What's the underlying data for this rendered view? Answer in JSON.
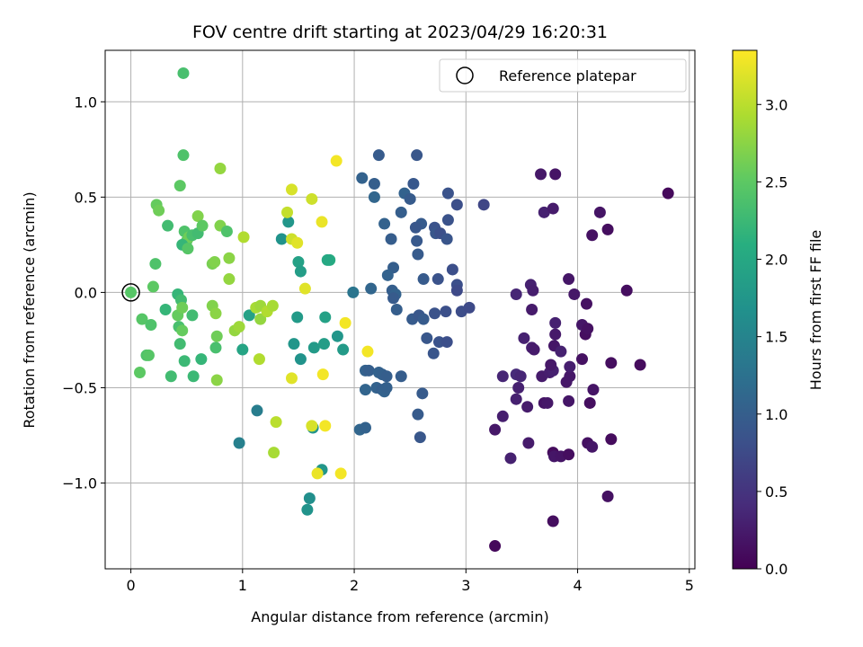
{
  "chart_data": {
    "type": "scatter",
    "title": "FOV centre drift starting at 2023/04/29 16:20:31",
    "xlabel": "Angular distance from reference (arcmin)",
    "ylabel": "Rotation from reference (arcmin)",
    "xlim": [
      -0.23,
      5.05
    ],
    "ylim": [
      -1.45,
      1.27
    ],
    "xticks": [
      0,
      1,
      2,
      3,
      4,
      5
    ],
    "xtick_labels": [
      "0",
      "1",
      "2",
      "3",
      "4",
      "5"
    ],
    "yticks": [
      -1.0,
      -0.5,
      0.0,
      0.5,
      1.0
    ],
    "ytick_labels": [
      "−1.0",
      "−0.5",
      "0.0",
      "0.5",
      "1.0"
    ],
    "grid": true,
    "colormap": "viridis",
    "colorbar": {
      "label": "Hours from first FF file",
      "range": [
        0.0,
        3.35
      ],
      "ticks": [
        0.0,
        0.5,
        1.0,
        1.5,
        2.0,
        2.5,
        3.0
      ],
      "tick_labels": [
        "0.0",
        "0.5",
        "1.0",
        "1.5",
        "2.0",
        "2.5",
        "3.0"
      ]
    },
    "legend": {
      "placement": "top-right",
      "label": "Reference platepar"
    },
    "reference_point": {
      "x": 0.0,
      "y": 0.0
    },
    "points": [
      {
        "x": 3.26,
        "y": -1.33,
        "t": 0.08
      },
      {
        "x": 3.78,
        "y": -1.2,
        "t": 0.12
      },
      {
        "x": 4.27,
        "y": -1.07,
        "t": 0.15
      },
      {
        "x": 3.4,
        "y": -0.87,
        "t": 0.3
      },
      {
        "x": 3.78,
        "y": -0.84,
        "t": 0.1
      },
      {
        "x": 3.79,
        "y": -0.86,
        "t": 0.2
      },
      {
        "x": 3.85,
        "y": -0.86,
        "t": 0.18
      },
      {
        "x": 3.92,
        "y": -0.85,
        "t": 0.12
      },
      {
        "x": 4.09,
        "y": -0.79,
        "t": 0.15
      },
      {
        "x": 4.13,
        "y": -0.81,
        "t": 0.2
      },
      {
        "x": 4.3,
        "y": -0.77,
        "t": 0.1
      },
      {
        "x": 3.56,
        "y": -0.79,
        "t": 0.25
      },
      {
        "x": 3.26,
        "y": -0.72,
        "t": 0.22
      },
      {
        "x": 3.33,
        "y": -0.65,
        "t": 0.28
      },
      {
        "x": 3.7,
        "y": -0.58,
        "t": 0.18
      },
      {
        "x": 3.73,
        "y": -0.58,
        "t": 0.22
      },
      {
        "x": 3.45,
        "y": -0.56,
        "t": 0.3
      },
      {
        "x": 3.55,
        "y": -0.6,
        "t": 0.25
      },
      {
        "x": 3.92,
        "y": -0.57,
        "t": 0.2
      },
      {
        "x": 4.11,
        "y": -0.58,
        "t": 0.12
      },
      {
        "x": 3.47,
        "y": -0.5,
        "t": 0.3
      },
      {
        "x": 4.14,
        "y": -0.51,
        "t": 0.18
      },
      {
        "x": 3.9,
        "y": -0.47,
        "t": 0.22
      },
      {
        "x": 3.33,
        "y": -0.44,
        "t": 0.35
      },
      {
        "x": 3.45,
        "y": -0.43,
        "t": 0.4
      },
      {
        "x": 3.49,
        "y": -0.44,
        "t": 0.35
      },
      {
        "x": 3.68,
        "y": -0.44,
        "t": 0.25
      },
      {
        "x": 3.75,
        "y": -0.42,
        "t": 0.28
      },
      {
        "x": 3.78,
        "y": -0.41,
        "t": 0.3
      },
      {
        "x": 3.93,
        "y": -0.44,
        "t": 0.22
      },
      {
        "x": 3.76,
        "y": -0.38,
        "t": 0.22
      },
      {
        "x": 3.93,
        "y": -0.39,
        "t": 0.28
      },
      {
        "x": 4.04,
        "y": -0.35,
        "t": 0.15
      },
      {
        "x": 4.3,
        "y": -0.37,
        "t": 0.12
      },
      {
        "x": 4.56,
        "y": -0.38,
        "t": 0.1
      },
      {
        "x": 3.52,
        "y": -0.24,
        "t": 0.3
      },
      {
        "x": 3.59,
        "y": -0.29,
        "t": 0.28
      },
      {
        "x": 3.61,
        "y": -0.3,
        "t": 0.25
      },
      {
        "x": 3.79,
        "y": -0.28,
        "t": 0.2
      },
      {
        "x": 3.8,
        "y": -0.22,
        "t": 0.24
      },
      {
        "x": 3.85,
        "y": -0.31,
        "t": 0.3
      },
      {
        "x": 4.07,
        "y": -0.22,
        "t": 0.12
      },
      {
        "x": 4.04,
        "y": -0.17,
        "t": 0.2
      },
      {
        "x": 4.09,
        "y": -0.19,
        "t": 0.15
      },
      {
        "x": 3.59,
        "y": -0.09,
        "t": 0.25
      },
      {
        "x": 3.8,
        "y": -0.16,
        "t": 0.3
      },
      {
        "x": 3.45,
        "y": -0.01,
        "t": 0.35
      },
      {
        "x": 3.58,
        "y": 0.04,
        "t": 0.3
      },
      {
        "x": 3.6,
        "y": 0.01,
        "t": 0.28
      },
      {
        "x": 3.97,
        "y": -0.01,
        "t": 0.22
      },
      {
        "x": 4.08,
        "y": -0.06,
        "t": 0.15
      },
      {
        "x": 4.44,
        "y": 0.01,
        "t": 0.12
      },
      {
        "x": 3.92,
        "y": 0.07,
        "t": 0.2
      },
      {
        "x": 4.13,
        "y": 0.3,
        "t": 0.15
      },
      {
        "x": 4.27,
        "y": 0.33,
        "t": 0.12
      },
      {
        "x": 4.2,
        "y": 0.42,
        "t": 0.18
      },
      {
        "x": 3.7,
        "y": 0.42,
        "t": 0.3
      },
      {
        "x": 3.78,
        "y": 0.44,
        "t": 0.25
      },
      {
        "x": 3.67,
        "y": 0.62,
        "t": 0.22
      },
      {
        "x": 3.8,
        "y": 0.62,
        "t": 0.18
      },
      {
        "x": 4.81,
        "y": 0.52,
        "t": 0.08
      },
      {
        "x": 2.22,
        "y": 0.72,
        "t": 0.95
      },
      {
        "x": 2.56,
        "y": 0.72,
        "t": 0.9
      },
      {
        "x": 2.07,
        "y": 0.6,
        "t": 1.05
      },
      {
        "x": 2.18,
        "y": 0.57,
        "t": 1.0
      },
      {
        "x": 2.53,
        "y": 0.57,
        "t": 0.92
      },
      {
        "x": 2.18,
        "y": 0.5,
        "t": 1.1
      },
      {
        "x": 2.45,
        "y": 0.52,
        "t": 1.05
      },
      {
        "x": 2.5,
        "y": 0.49,
        "t": 0.95
      },
      {
        "x": 2.84,
        "y": 0.52,
        "t": 0.85
      },
      {
        "x": 2.92,
        "y": 0.46,
        "t": 0.8
      },
      {
        "x": 3.16,
        "y": 0.46,
        "t": 0.7
      },
      {
        "x": 2.27,
        "y": 0.36,
        "t": 1.05
      },
      {
        "x": 2.42,
        "y": 0.42,
        "t": 1.0
      },
      {
        "x": 2.6,
        "y": 0.36,
        "t": 0.95
      },
      {
        "x": 2.55,
        "y": 0.34,
        "t": 0.9
      },
      {
        "x": 2.72,
        "y": 0.34,
        "t": 0.85
      },
      {
        "x": 2.84,
        "y": 0.38,
        "t": 0.85
      },
      {
        "x": 2.73,
        "y": 0.31,
        "t": 0.9
      },
      {
        "x": 2.77,
        "y": 0.31,
        "t": 0.82
      },
      {
        "x": 2.33,
        "y": 0.28,
        "t": 0.98
      },
      {
        "x": 2.56,
        "y": 0.27,
        "t": 0.93
      },
      {
        "x": 2.83,
        "y": 0.28,
        "t": 0.88
      },
      {
        "x": 2.57,
        "y": 0.2,
        "t": 0.95
      },
      {
        "x": 2.35,
        "y": 0.13,
        "t": 1.0
      },
      {
        "x": 2.3,
        "y": 0.09,
        "t": 1.05
      },
      {
        "x": 2.62,
        "y": 0.07,
        "t": 0.95
      },
      {
        "x": 2.75,
        "y": 0.07,
        "t": 0.85
      },
      {
        "x": 2.88,
        "y": 0.12,
        "t": 0.8
      },
      {
        "x": 2.15,
        "y": 0.02,
        "t": 1.1
      },
      {
        "x": 2.34,
        "y": 0.01,
        "t": 1.0
      },
      {
        "x": 2.37,
        "y": -0.01,
        "t": 1.05
      },
      {
        "x": 2.35,
        "y": -0.03,
        "t": 0.95
      },
      {
        "x": 2.92,
        "y": 0.04,
        "t": 0.8
      },
      {
        "x": 2.92,
        "y": 0.01,
        "t": 0.75
      },
      {
        "x": 2.38,
        "y": -0.09,
        "t": 1.0
      },
      {
        "x": 2.52,
        "y": -0.14,
        "t": 0.95
      },
      {
        "x": 2.58,
        "y": -0.12,
        "t": 0.9
      },
      {
        "x": 2.62,
        "y": -0.14,
        "t": 0.95
      },
      {
        "x": 2.72,
        "y": -0.11,
        "t": 0.85
      },
      {
        "x": 2.65,
        "y": -0.24,
        "t": 0.9
      },
      {
        "x": 2.76,
        "y": -0.26,
        "t": 0.85
      },
      {
        "x": 2.83,
        "y": -0.26,
        "t": 0.8
      },
      {
        "x": 2.71,
        "y": -0.32,
        "t": 0.88
      },
      {
        "x": 2.82,
        "y": -0.1,
        "t": 0.82
      },
      {
        "x": 2.96,
        "y": -0.1,
        "t": 0.78
      },
      {
        "x": 3.03,
        "y": -0.08,
        "t": 0.75
      },
      {
        "x": 2.1,
        "y": -0.41,
        "t": 1.05
      },
      {
        "x": 2.13,
        "y": -0.41,
        "t": 1.0
      },
      {
        "x": 2.22,
        "y": -0.42,
        "t": 1.05
      },
      {
        "x": 2.25,
        "y": -0.43,
        "t": 1.02
      },
      {
        "x": 2.29,
        "y": -0.44,
        "t": 1.0
      },
      {
        "x": 2.42,
        "y": -0.44,
        "t": 0.98
      },
      {
        "x": 2.1,
        "y": -0.51,
        "t": 1.08
      },
      {
        "x": 2.2,
        "y": -0.5,
        "t": 1.05
      },
      {
        "x": 2.25,
        "y": -0.51,
        "t": 1.0
      },
      {
        "x": 2.27,
        "y": -0.52,
        "t": 1.05
      },
      {
        "x": 2.29,
        "y": -0.5,
        "t": 1.02
      },
      {
        "x": 2.61,
        "y": -0.53,
        "t": 0.95
      },
      {
        "x": 2.57,
        "y": -0.64,
        "t": 0.95
      },
      {
        "x": 2.05,
        "y": -0.72,
        "t": 1.1
      },
      {
        "x": 2.1,
        "y": -0.71,
        "t": 1.05
      },
      {
        "x": 2.59,
        "y": -0.76,
        "t": 0.9
      },
      {
        "x": 1.99,
        "y": 0.0,
        "t": 1.3
      },
      {
        "x": 0.97,
        "y": -0.79,
        "t": 1.45
      },
      {
        "x": 1.13,
        "y": -0.62,
        "t": 1.4
      },
      {
        "x": 1.58,
        "y": -1.14,
        "t": 1.7
      },
      {
        "x": 1.6,
        "y": -1.08,
        "t": 1.65
      },
      {
        "x": 1.63,
        "y": -0.71,
        "t": 1.7
      },
      {
        "x": 1.71,
        "y": -0.93,
        "t": 1.75
      },
      {
        "x": 1.78,
        "y": 0.17,
        "t": 2.05
      },
      {
        "x": 1.76,
        "y": 0.17,
        "t": 2.0
      },
      {
        "x": 1.5,
        "y": 0.16,
        "t": 1.9
      },
      {
        "x": 1.52,
        "y": 0.11,
        "t": 1.85
      },
      {
        "x": 1.35,
        "y": 0.28,
        "t": 1.7
      },
      {
        "x": 1.41,
        "y": 0.37,
        "t": 1.75
      },
      {
        "x": 1.49,
        "y": -0.13,
        "t": 1.8
      },
      {
        "x": 1.46,
        "y": -0.27,
        "t": 1.75
      },
      {
        "x": 1.52,
        "y": -0.35,
        "t": 1.7
      },
      {
        "x": 1.64,
        "y": -0.29,
        "t": 1.8
      },
      {
        "x": 1.73,
        "y": -0.27,
        "t": 1.85
      },
      {
        "x": 1.74,
        "y": -0.13,
        "t": 1.9
      },
      {
        "x": 1.85,
        "y": -0.23,
        "t": 1.75
      },
      {
        "x": 1.9,
        "y": -0.3,
        "t": 1.8
      },
      {
        "x": 1.0,
        "y": -0.3,
        "t": 1.95
      },
      {
        "x": 1.06,
        "y": -0.12,
        "t": 1.9
      },
      {
        "x": 0.47,
        "y": 1.15,
        "t": 2.35
      },
      {
        "x": 0.47,
        "y": 0.72,
        "t": 2.4
      },
      {
        "x": 0.44,
        "y": 0.56,
        "t": 2.5
      },
      {
        "x": 0.23,
        "y": 0.46,
        "t": 2.55
      },
      {
        "x": 0.25,
        "y": 0.43,
        "t": 2.6
      },
      {
        "x": 0.33,
        "y": 0.35,
        "t": 2.3
      },
      {
        "x": 0.48,
        "y": 0.32,
        "t": 2.4
      },
      {
        "x": 0.5,
        "y": 0.27,
        "t": 2.5
      },
      {
        "x": 0.52,
        "y": 0.29,
        "t": 2.6
      },
      {
        "x": 0.46,
        "y": 0.25,
        "t": 2.2
      },
      {
        "x": 0.51,
        "y": 0.23,
        "t": 2.45
      },
      {
        "x": 0.55,
        "y": 0.3,
        "t": 2.35
      },
      {
        "x": 0.6,
        "y": 0.31,
        "t": 2.3
      },
      {
        "x": 0.6,
        "y": 0.4,
        "t": 2.7
      },
      {
        "x": 0.64,
        "y": 0.35,
        "t": 2.5
      },
      {
        "x": 0.73,
        "y": 0.15,
        "t": 2.65
      },
      {
        "x": 0.75,
        "y": 0.16,
        "t": 2.7
      },
      {
        "x": 0.8,
        "y": 0.35,
        "t": 2.7
      },
      {
        "x": 0.8,
        "y": 0.65,
        "t": 2.8
      },
      {
        "x": 0.86,
        "y": 0.32,
        "t": 2.4
      },
      {
        "x": 0.88,
        "y": 0.18,
        "t": 2.75
      },
      {
        "x": 0.88,
        "y": 0.07,
        "t": 2.8
      },
      {
        "x": 0.22,
        "y": 0.15,
        "t": 2.4
      },
      {
        "x": 0.2,
        "y": 0.03,
        "t": 2.5
      },
      {
        "x": 0.1,
        "y": -0.14,
        "t": 2.45
      },
      {
        "x": 0.18,
        "y": -0.17,
        "t": 2.4
      },
      {
        "x": 0.31,
        "y": -0.09,
        "t": 2.2
      },
      {
        "x": 0.42,
        "y": -0.01,
        "t": 2.2
      },
      {
        "x": 0.45,
        "y": -0.04,
        "t": 2.3
      },
      {
        "x": 0.42,
        "y": -0.12,
        "t": 2.55
      },
      {
        "x": 0.46,
        "y": -0.08,
        "t": 2.6
      },
      {
        "x": 0.43,
        "y": -0.18,
        "t": 2.35
      },
      {
        "x": 0.46,
        "y": -0.2,
        "t": 2.55
      },
      {
        "x": 0.55,
        "y": -0.12,
        "t": 2.3
      },
      {
        "x": 0.73,
        "y": -0.07,
        "t": 2.7
      },
      {
        "x": 0.76,
        "y": -0.11,
        "t": 2.75
      },
      {
        "x": 0.44,
        "y": -0.27,
        "t": 2.3
      },
      {
        "x": 0.76,
        "y": -0.29,
        "t": 2.35
      },
      {
        "x": 0.14,
        "y": -0.33,
        "t": 2.4
      },
      {
        "x": 0.16,
        "y": -0.33,
        "t": 2.45
      },
      {
        "x": 0.08,
        "y": -0.42,
        "t": 2.5
      },
      {
        "x": 0.36,
        "y": -0.44,
        "t": 2.3
      },
      {
        "x": 0.48,
        "y": -0.36,
        "t": 2.25
      },
      {
        "x": 0.56,
        "y": -0.44,
        "t": 2.25
      },
      {
        "x": 0.63,
        "y": -0.35,
        "t": 2.2
      },
      {
        "x": 0.77,
        "y": -0.23,
        "t": 2.6
      },
      {
        "x": 0.77,
        "y": -0.46,
        "t": 2.75
      },
      {
        "x": 0.93,
        "y": -0.2,
        "t": 2.8
      },
      {
        "x": 0.97,
        "y": -0.18,
        "t": 2.85
      },
      {
        "x": 1.01,
        "y": 0.29,
        "t": 2.95
      },
      {
        "x": 1.12,
        "y": -0.08,
        "t": 2.9
      },
      {
        "x": 1.16,
        "y": -0.07,
        "t": 2.85
      },
      {
        "x": 1.16,
        "y": -0.14,
        "t": 2.8
      },
      {
        "x": 1.22,
        "y": -0.1,
        "t": 2.95
      },
      {
        "x": 1.27,
        "y": -0.07,
        "t": 2.9
      },
      {
        "x": 1.15,
        "y": -0.35,
        "t": 2.95
      },
      {
        "x": 1.3,
        "y": -0.68,
        "t": 3.0
      },
      {
        "x": 1.28,
        "y": -0.84,
        "t": 2.9
      },
      {
        "x": 1.44,
        "y": 0.54,
        "t": 3.15
      },
      {
        "x": 1.4,
        "y": 0.42,
        "t": 3.05
      },
      {
        "x": 1.44,
        "y": 0.28,
        "t": 3.1
      },
      {
        "x": 1.49,
        "y": 0.26,
        "t": 3.2
      },
      {
        "x": 1.56,
        "y": 0.02,
        "t": 3.2
      },
      {
        "x": 1.44,
        "y": -0.45,
        "t": 3.2
      },
      {
        "x": 1.62,
        "y": 0.49,
        "t": 3.1
      },
      {
        "x": 1.71,
        "y": 0.37,
        "t": 3.25
      },
      {
        "x": 1.84,
        "y": 0.69,
        "t": 3.3
      },
      {
        "x": 1.72,
        "y": -0.43,
        "t": 3.3
      },
      {
        "x": 1.62,
        "y": -0.7,
        "t": 3.15
      },
      {
        "x": 1.74,
        "y": -0.7,
        "t": 3.3
      },
      {
        "x": 1.67,
        "y": -0.95,
        "t": 3.25
      },
      {
        "x": 1.88,
        "y": -0.95,
        "t": 3.3
      },
      {
        "x": 1.92,
        "y": -0.16,
        "t": 3.3
      },
      {
        "x": 2.12,
        "y": -0.31,
        "t": 3.3
      }
    ]
  }
}
